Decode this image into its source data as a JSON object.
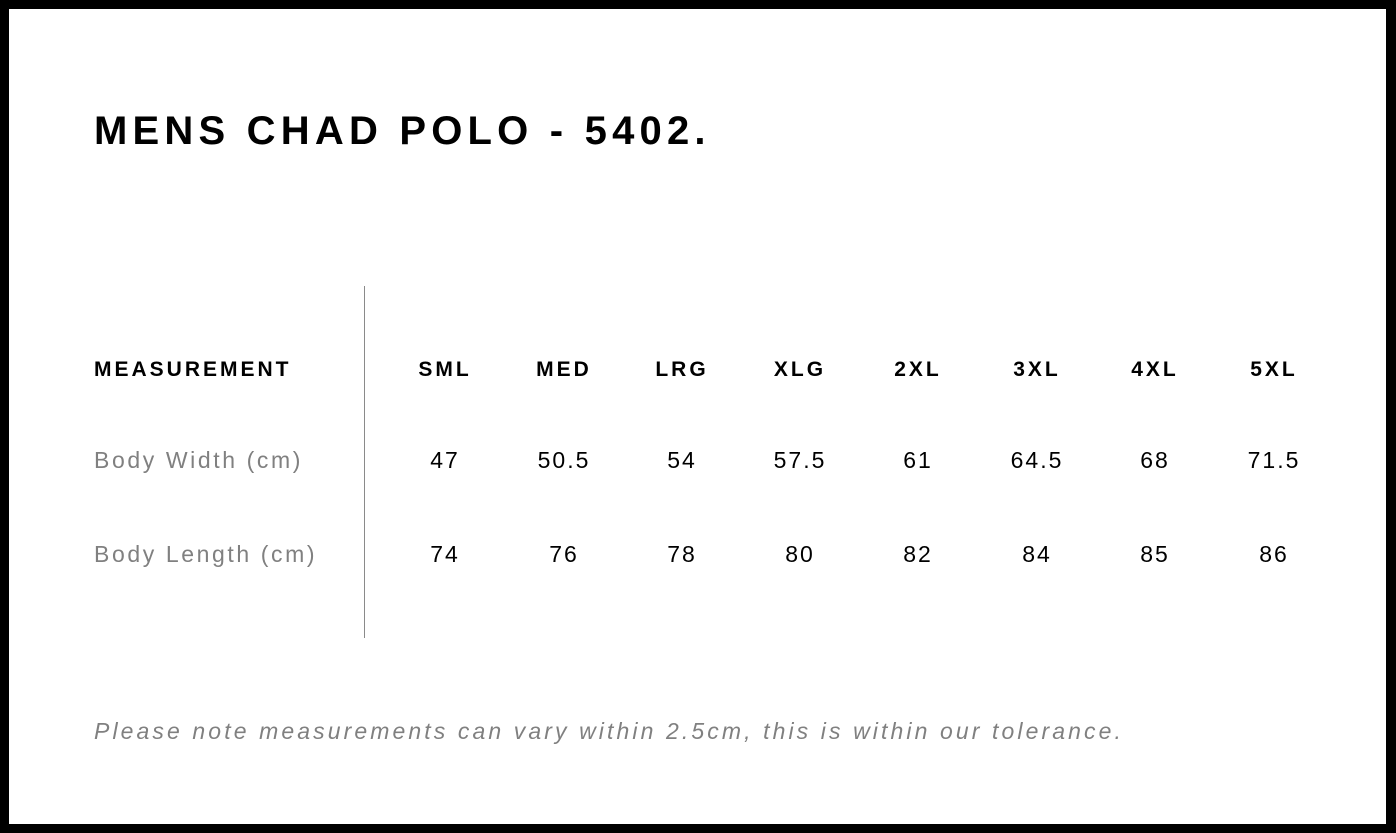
{
  "title": "MENS CHAD POLO - 5402.",
  "table": {
    "header_label": "MEASUREMENT",
    "sizes": [
      "SML",
      "MED",
      "LRG",
      "XLG",
      "2XL",
      "3XL",
      "4XL",
      "5XL"
    ],
    "rows": [
      {
        "label": "Body Width (cm)",
        "values": [
          "47",
          "50.5",
          "54",
          "57.5",
          "61",
          "64.5",
          "68",
          "71.5"
        ]
      },
      {
        "label": "Body Length (cm)",
        "values": [
          "74",
          "76",
          "78",
          "80",
          "82",
          "84",
          "85",
          "86"
        ]
      }
    ]
  },
  "note": "Please note measurements can vary within 2.5cm, this is within our tolerance.",
  "colors": {
    "border": "#000000",
    "label": "#808080",
    "divider": "#8a8a8a"
  }
}
